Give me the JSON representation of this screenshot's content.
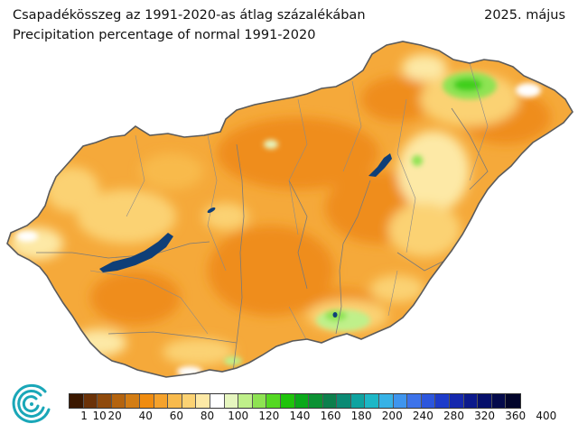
{
  "header": {
    "title_hu": "Csapadékösszeg az 1991-2020-as átlag százalékában",
    "title_en": "Precipitation percentage of normal 1991-2020",
    "date": "2025. május"
  },
  "map": {
    "country": "Hungary",
    "variable": "precipitation percentage of normal",
    "dominant_range": "40-100",
    "colors": {
      "country_fill": "#f5a93a",
      "water": "#0f3f78",
      "border": "#5a5a5a"
    }
  },
  "legend": {
    "colors": [
      "#3b1800",
      "#6b3208",
      "#8f4a0c",
      "#b4640f",
      "#d37d14",
      "#f08c10",
      "#f5a22c",
      "#f8ba4c",
      "#fbd273",
      "#fde9a6",
      "#ffffff",
      "#e6f6bf",
      "#bff08a",
      "#8ee352",
      "#54d822",
      "#1fc40b",
      "#0aa91a",
      "#0b9133",
      "#0c7f4c",
      "#0b8a74",
      "#0fa3a0",
      "#1db7c6",
      "#37b2e6",
      "#3f95ee",
      "#3d73ea",
      "#2c56dd",
      "#1d3bca",
      "#1528ad",
      "#0c1a8c",
      "#06106b",
      "#040a4b",
      "#02052b"
    ],
    "labels": [
      "1",
      "10",
      "20",
      "40",
      "60",
      "80",
      "100",
      "120",
      "140",
      "160",
      "180",
      "200",
      "240",
      "280",
      "320",
      "360",
      "400"
    ]
  },
  "logo": {
    "icon": "met-service-spiral-logo"
  }
}
